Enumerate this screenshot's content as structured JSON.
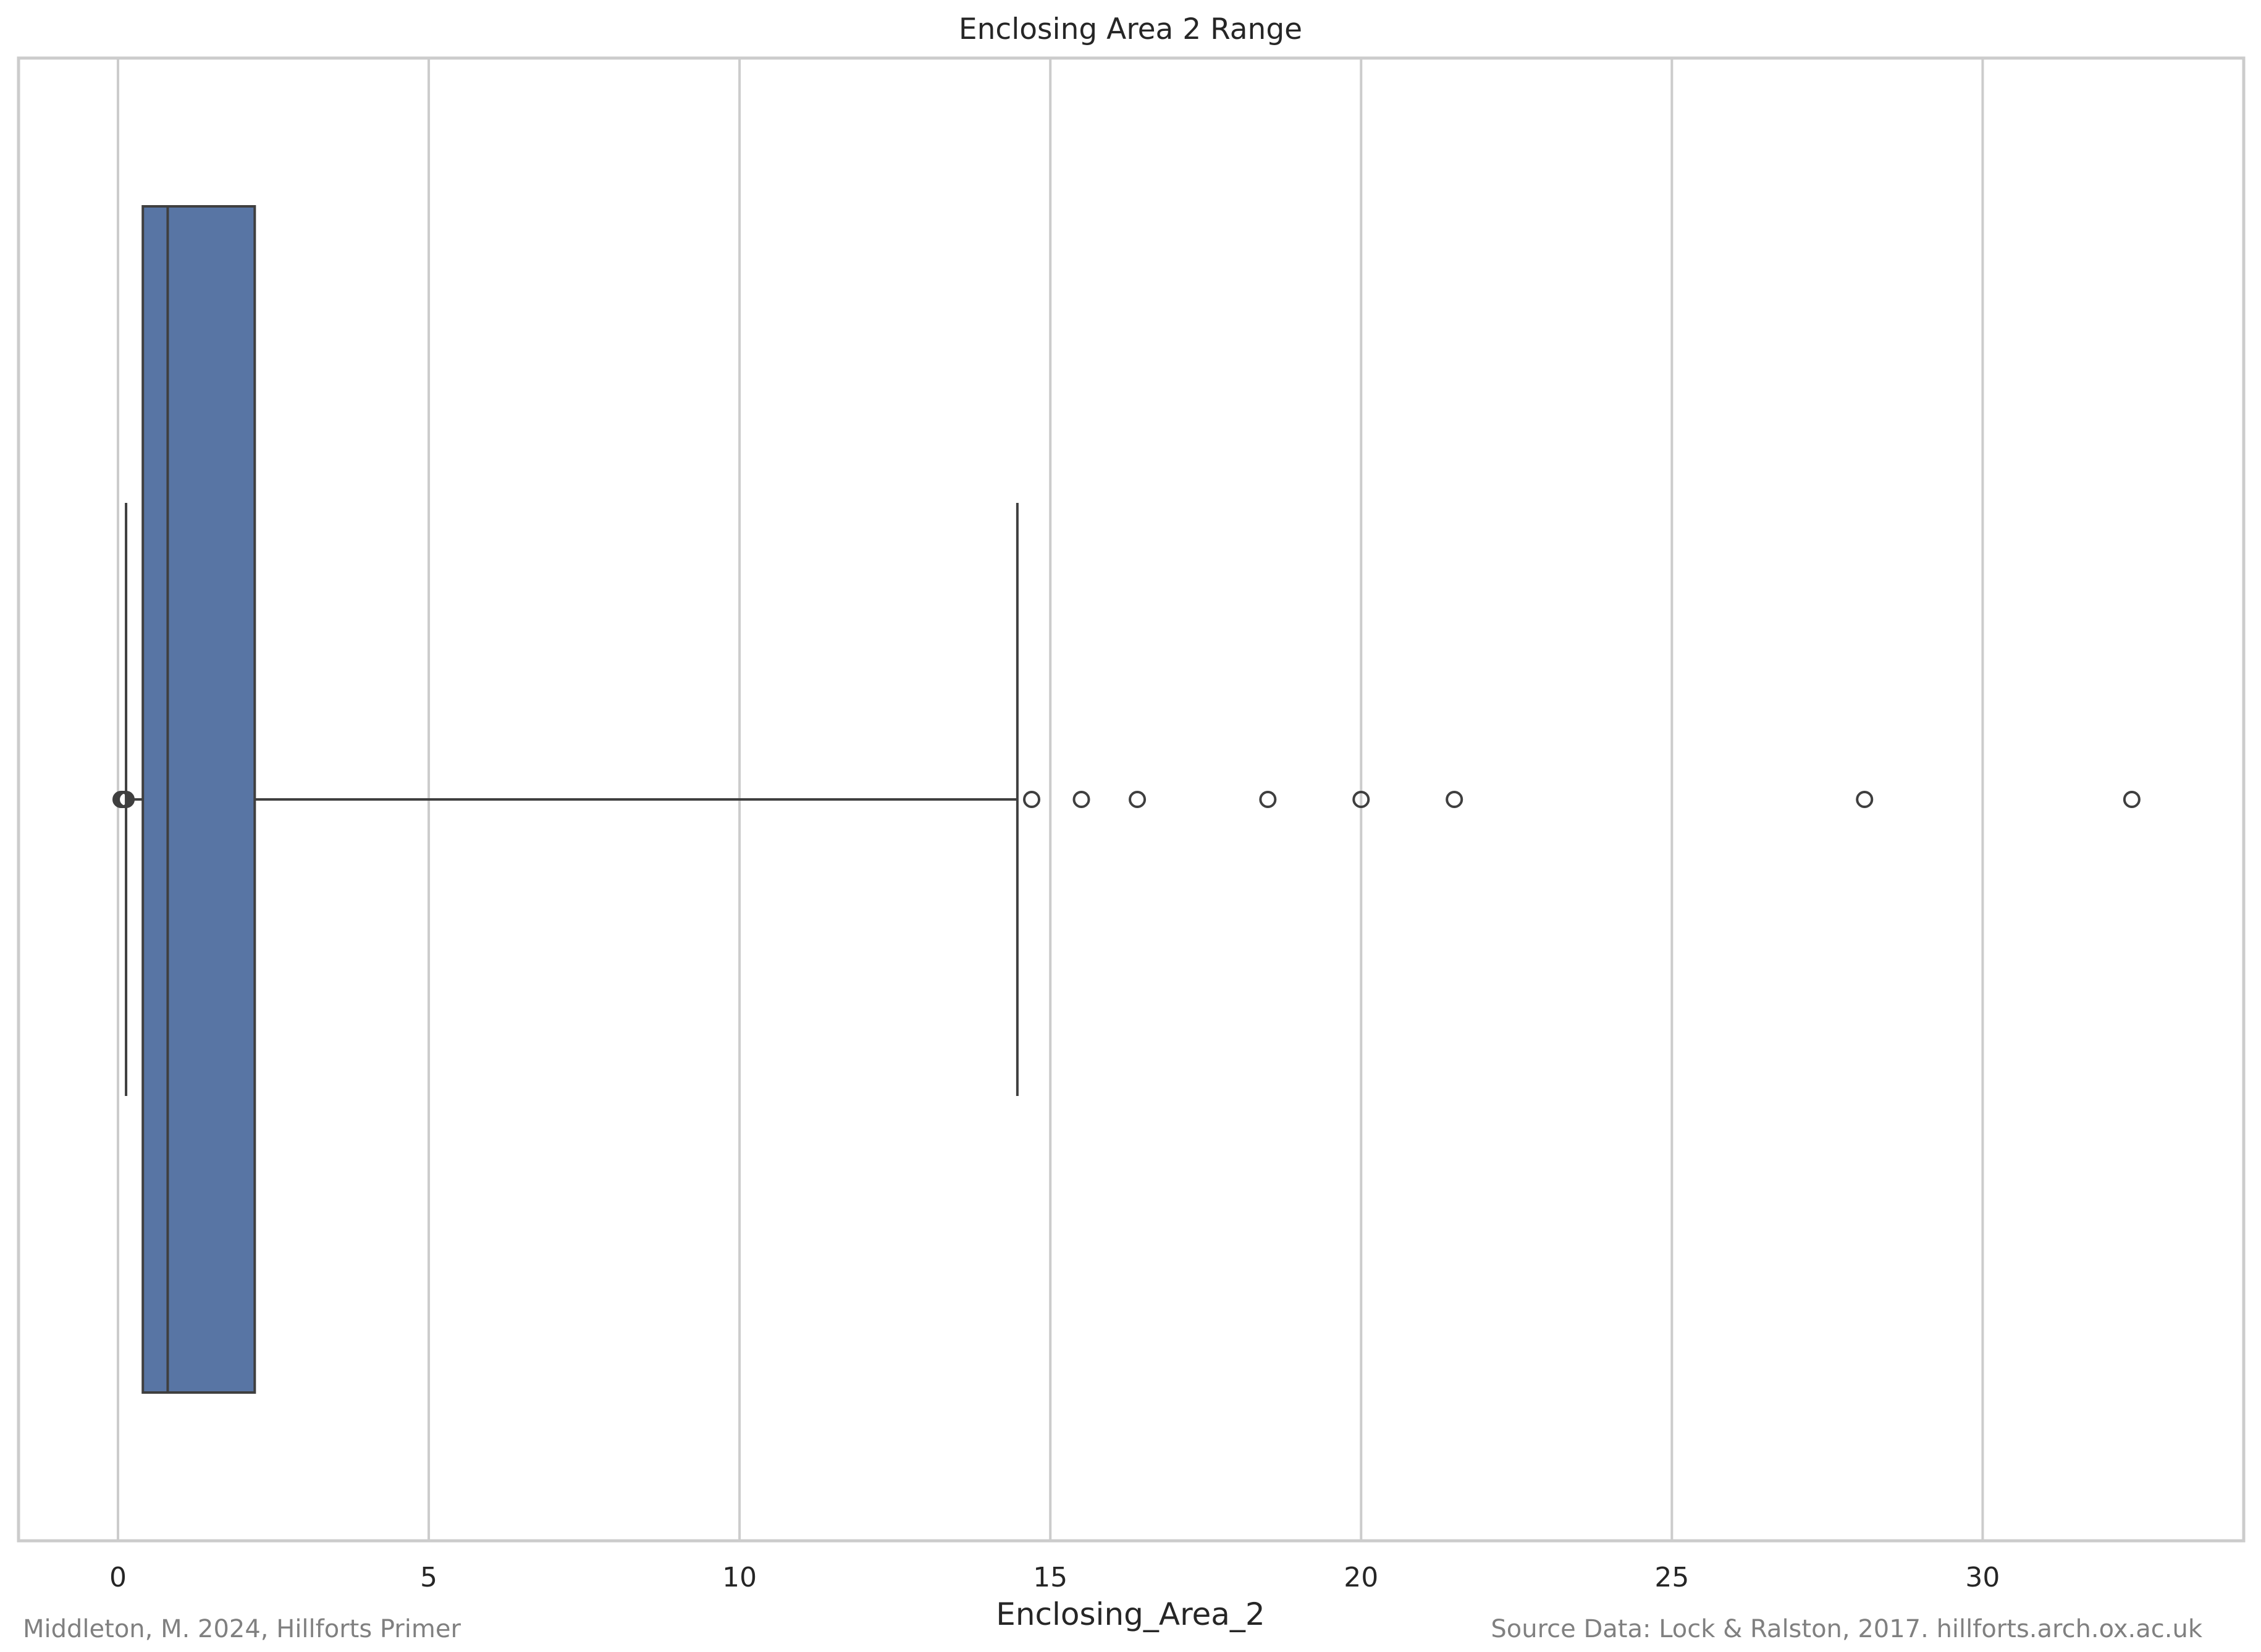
{
  "chart_data": {
    "type": "box",
    "title": "Enclosing Area 2 Range",
    "xlabel": "Enclosing_Area_2",
    "ylabel": "",
    "xlim": [
      -1.6,
      34.2
    ],
    "x_ticks": [
      0,
      5,
      10,
      15,
      20,
      25,
      30
    ],
    "grid": true,
    "orientation": "horizontal",
    "box": {
      "whisker_low": 0.13,
      "q1": 0.4,
      "median": 0.8,
      "q3": 2.2,
      "whisker_high": 14.47
    },
    "outliers": [
      0.05,
      0.07,
      0.09,
      0.11,
      0.13,
      14.7,
      15.5,
      16.4,
      18.5,
      20.0,
      21.5,
      28.1,
      32.4
    ]
  },
  "footer": {
    "left": "Middleton, M. 2024, Hillforts Primer",
    "right": "Source Data: Lock & Ralston, 2017. hillforts.arch.ox.ac.uk"
  },
  "colors": {
    "box_fill": "#5875a4",
    "box_edge": "#3f3f3f",
    "grid": "#cccccc",
    "frame": "#cccccc",
    "text": "#262626",
    "footer_text": "#808080",
    "outlier_edge": "#3f3f3f"
  }
}
